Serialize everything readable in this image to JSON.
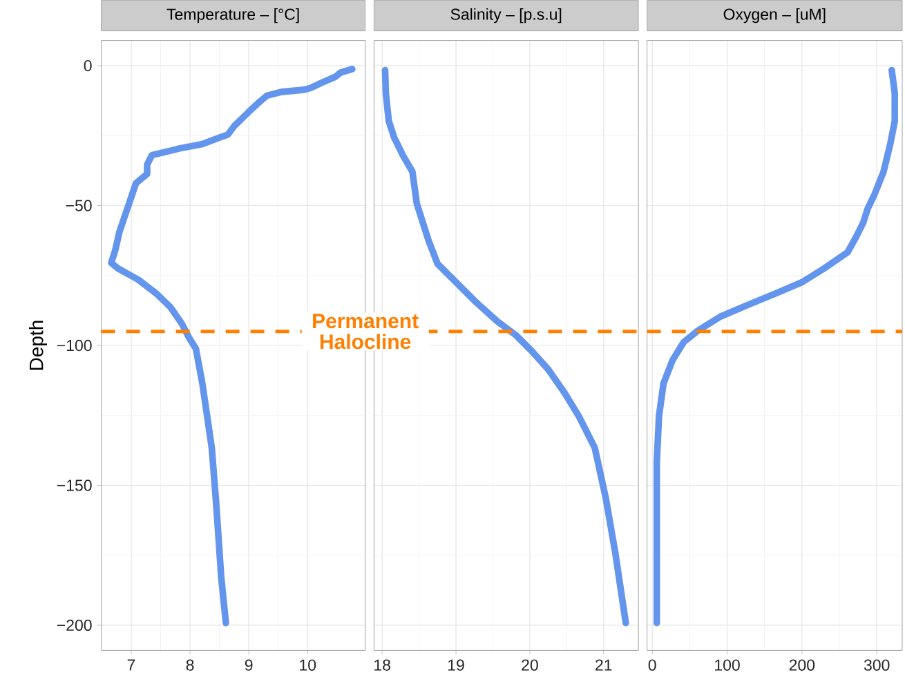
{
  "chart_data": [
    {
      "type": "line",
      "title": "Temperature – [°C]",
      "ylabel": "Depth",
      "xlim": [
        6.49,
        10.98
      ],
      "xticks": [
        7,
        8,
        9,
        10
      ],
      "ylim": [
        -209,
        9
      ],
      "yticks": [
        {
          "value": 0,
          "label": "0"
        },
        {
          "value": -50,
          "label": "−50"
        },
        {
          "value": -100,
          "label": "−100"
        },
        {
          "value": -150,
          "label": "−150"
        },
        {
          "value": -200,
          "label": "−200"
        }
      ],
      "grid": true,
      "line_style": "solid",
      "series": [
        {
          "color": "#6495ed",
          "x": [
            10.76,
            10.56,
            10.47,
            10.25,
            10.05,
            9.94,
            9.55,
            9.31,
            9.19,
            9.0,
            8.76,
            8.64,
            8.53,
            8.21,
            7.82,
            7.35,
            7.27,
            7.27,
            7.08,
            7.0,
            6.92,
            6.8,
            6.73,
            6.66,
            6.77,
            7.12,
            7.43,
            7.67,
            7.86,
            7.98,
            8.1,
            8.21,
            8.37,
            8.45,
            8.53,
            8.61
          ],
          "values": [
            -1.2,
            -2.5,
            -4,
            -6,
            -8,
            -8.6,
            -9.4,
            -10.7,
            -12.8,
            -16.5,
            -21.4,
            -24.7,
            -25.5,
            -28,
            -29.6,
            -32,
            -35.4,
            -38.7,
            -42,
            -47,
            -51.9,
            -59.3,
            -65.8,
            -70.5,
            -72.4,
            -76.5,
            -81.5,
            -86.4,
            -92.2,
            -97.1,
            -101.2,
            -113.6,
            -136.6,
            -158,
            -182.7,
            -199.2
          ]
        }
      ],
      "ref_lines": [
        {
          "axis": "y",
          "value": -95,
          "label": "Permanent Halocline",
          "color": "#ff7f00",
          "line_style": "dashed"
        }
      ]
    },
    {
      "type": "line",
      "title": "Salinity – [p.s.u]",
      "xlim": [
        17.89,
        21.47
      ],
      "xticks": [
        18,
        19,
        20,
        21
      ],
      "ylim": [
        -209,
        9
      ],
      "yticks": [
        0,
        -50,
        -100,
        -150,
        -200
      ],
      "tick_labels": "x",
      "grid": true,
      "line_style": "solid",
      "series": [
        {
          "color": "#6495ed",
          "x": [
            18.04,
            18.05,
            18.09,
            18.16,
            18.28,
            18.41,
            18.47,
            18.63,
            18.75,
            19.0,
            19.25,
            19.56,
            19.81,
            20.03,
            20.25,
            20.47,
            20.66,
            20.88,
            21.03,
            21.16,
            21.3
          ],
          "values": [
            -1.6,
            -9.9,
            -19.8,
            -25.5,
            -32,
            -37.9,
            -49.4,
            -62.6,
            -70.8,
            -77.4,
            -84,
            -91.4,
            -96.3,
            -102.1,
            -108.6,
            -116.9,
            -125.1,
            -136.6,
            -154.7,
            -174.5,
            -199.2
          ]
        }
      ],
      "ref_lines": [
        {
          "axis": "y",
          "value": -95,
          "color": "#ff7f00",
          "line_style": "dashed"
        }
      ]
    },
    {
      "type": "line",
      "title": "Oxygen – [uM]",
      "xlim": [
        -7,
        334
      ],
      "xticks": [
        0,
        100,
        200,
        300
      ],
      "ylim": [
        -209,
        9
      ],
      "yticks": [
        0,
        -50,
        -100,
        -150,
        -200
      ],
      "tick_labels": "x",
      "grid": true,
      "line_style": "solid",
      "series": [
        {
          "color": "#6495ed",
          "x": [
            320,
            324,
            324,
            318,
            309,
            297,
            288,
            282,
            273,
            261,
            230,
            200,
            164,
            127,
            91,
            61,
            42,
            27,
            15,
            9,
            6,
            6
          ],
          "values": [
            -1.6,
            -9.9,
            -19.8,
            -28,
            -37.9,
            -46,
            -51,
            -56,
            -60.9,
            -66.7,
            -72.4,
            -77.4,
            -81.5,
            -85.6,
            -89.7,
            -94.7,
            -98.8,
            -105.3,
            -113.6,
            -125.1,
            -141.6,
            -199.2
          ]
        }
      ],
      "ref_lines": [
        {
          "axis": "y",
          "value": -95,
          "color": "#ff7f00",
          "line_style": "dashed"
        }
      ]
    }
  ]
}
